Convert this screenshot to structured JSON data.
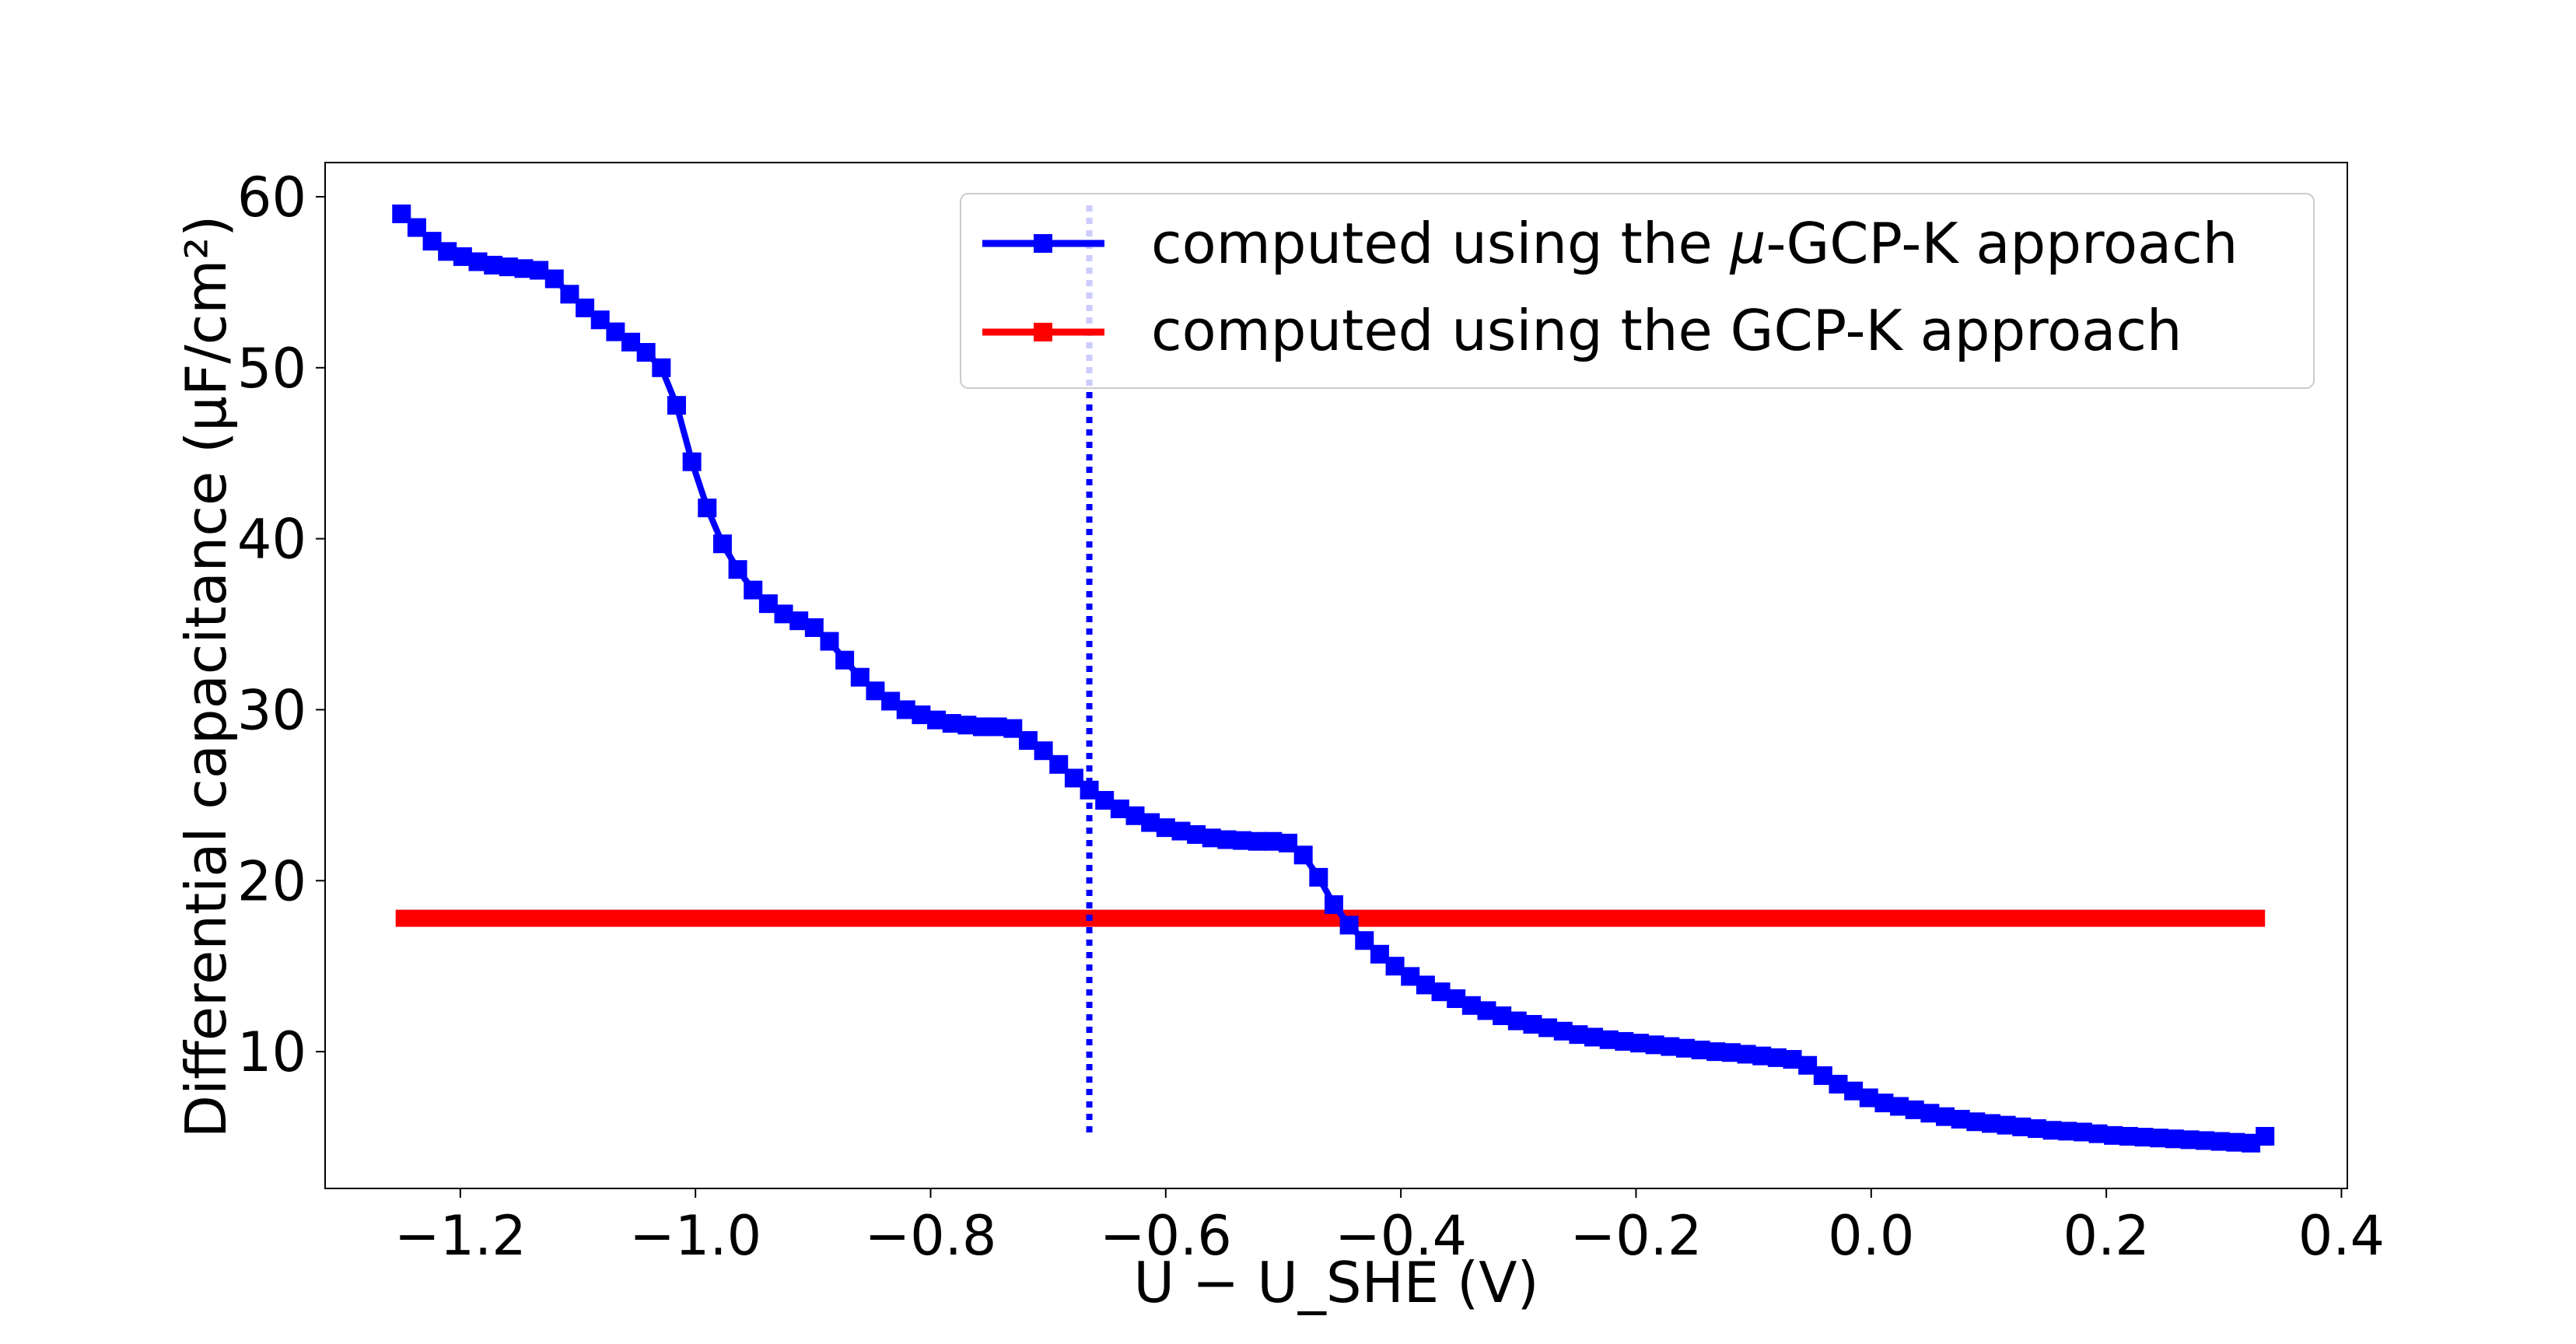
{
  "chart_data": {
    "type": "line",
    "title": "",
    "xlabel": "U − U_SHE (V)",
    "ylabel": "Differential capacitance (μF/cm²)",
    "xlim": [
      -1.315,
      0.405
    ],
    "ylim": [
      2.0,
      62.0
    ],
    "xticks": [
      {
        "value": -1.2,
        "label": "−1.2"
      },
      {
        "value": -1.0,
        "label": "−1.0"
      },
      {
        "value": -0.8,
        "label": "−0.8"
      },
      {
        "value": -0.6,
        "label": "−0.6"
      },
      {
        "value": -0.4,
        "label": "−0.4"
      },
      {
        "value": -0.2,
        "label": "−0.2"
      },
      {
        "value": 0.0,
        "label": "0.0"
      },
      {
        "value": 0.2,
        "label": "0.2"
      },
      {
        "value": 0.4,
        "label": "0.4"
      }
    ],
    "yticks": [
      {
        "value": 10,
        "label": "10"
      },
      {
        "value": 20,
        "label": "20"
      },
      {
        "value": 30,
        "label": "30"
      },
      {
        "value": 40,
        "label": "40"
      },
      {
        "value": 50,
        "label": "50"
      },
      {
        "value": 60,
        "label": "60"
      }
    ],
    "legend_position": "top-right",
    "series": [
      {
        "name": "computed using the μ-GCP-K approach",
        "legend_prefix": "computed using the ",
        "legend_mu": "μ",
        "legend_suffix": "-GCP-K approach",
        "color": "#0000ff",
        "marker": "square",
        "x": [
          -1.25,
          -1.237,
          -1.224,
          -1.211,
          -1.198,
          -1.185,
          -1.172,
          -1.159,
          -1.146,
          -1.133,
          -1.12,
          -1.107,
          -1.094,
          -1.081,
          -1.068,
          -1.055,
          -1.042,
          -1.029,
          -1.016,
          -1.003,
          -0.99,
          -0.977,
          -0.964,
          -0.951,
          -0.938,
          -0.925,
          -0.912,
          -0.899,
          -0.886,
          -0.873,
          -0.86,
          -0.847,
          -0.834,
          -0.821,
          -0.808,
          -0.795,
          -0.782,
          -0.769,
          -0.756,
          -0.743,
          -0.73,
          -0.717,
          -0.704,
          -0.691,
          -0.678,
          -0.665,
          -0.652,
          -0.639,
          -0.626,
          -0.613,
          -0.6,
          -0.587,
          -0.574,
          -0.561,
          -0.548,
          -0.535,
          -0.522,
          -0.509,
          -0.496,
          -0.483,
          -0.47,
          -0.457,
          -0.444,
          -0.431,
          -0.418,
          -0.405,
          -0.392,
          -0.379,
          -0.366,
          -0.353,
          -0.34,
          -0.327,
          -0.314,
          -0.301,
          -0.288,
          -0.275,
          -0.262,
          -0.249,
          -0.236,
          -0.223,
          -0.21,
          -0.197,
          -0.184,
          -0.171,
          -0.158,
          -0.145,
          -0.132,
          -0.119,
          -0.106,
          -0.093,
          -0.08,
          -0.067,
          -0.054,
          -0.041,
          -0.028,
          -0.015,
          -0.002,
          0.011,
          0.024,
          0.037,
          0.05,
          0.063,
          0.076,
          0.089,
          0.102,
          0.115,
          0.128,
          0.141,
          0.154,
          0.167,
          0.18,
          0.193,
          0.206,
          0.219,
          0.232,
          0.245,
          0.258,
          0.271,
          0.284,
          0.297,
          0.31,
          0.323,
          0.335
        ],
        "y": [
          59.0,
          58.2,
          57.4,
          56.8,
          56.5,
          56.2,
          56.0,
          55.9,
          55.8,
          55.7,
          55.2,
          54.3,
          53.5,
          52.8,
          52.1,
          51.5,
          50.9,
          50.0,
          47.8,
          44.5,
          41.8,
          39.7,
          38.2,
          37.0,
          36.2,
          35.6,
          35.2,
          34.8,
          34.0,
          32.9,
          31.9,
          31.1,
          30.5,
          30.0,
          29.7,
          29.4,
          29.2,
          29.1,
          29.0,
          29.0,
          28.9,
          28.2,
          27.6,
          26.8,
          26.0,
          25.3,
          24.7,
          24.2,
          23.8,
          23.4,
          23.1,
          22.9,
          22.7,
          22.5,
          22.4,
          22.35,
          22.3,
          22.3,
          22.2,
          21.5,
          20.2,
          18.6,
          17.4,
          16.5,
          15.7,
          15.0,
          14.4,
          13.9,
          13.5,
          13.1,
          12.7,
          12.4,
          12.1,
          11.8,
          11.6,
          11.4,
          11.2,
          11.0,
          10.85,
          10.7,
          10.6,
          10.5,
          10.4,
          10.3,
          10.2,
          10.1,
          10.0,
          9.95,
          9.85,
          9.75,
          9.65,
          9.55,
          9.2,
          8.6,
          8.1,
          7.7,
          7.3,
          7.0,
          6.8,
          6.6,
          6.4,
          6.2,
          6.05,
          5.9,
          5.8,
          5.7,
          5.6,
          5.5,
          5.4,
          5.35,
          5.3,
          5.2,
          5.1,
          5.05,
          5.0,
          4.95,
          4.9,
          4.85,
          4.8,
          4.75,
          4.7,
          4.65,
          5.05
        ]
      },
      {
        "name": "computed using the GCP-K approach",
        "legend_text": "computed using the GCP-K approach",
        "color": "#ff0000",
        "marker": "square",
        "x": [
          -1.255,
          0.335
        ],
        "y": [
          17.8,
          17.8
        ]
      }
    ],
    "vertical_line": {
      "x": -0.665,
      "y_from": 5.0,
      "y_to": 59.5,
      "style": "dotted",
      "color": "#0000ff"
    }
  }
}
